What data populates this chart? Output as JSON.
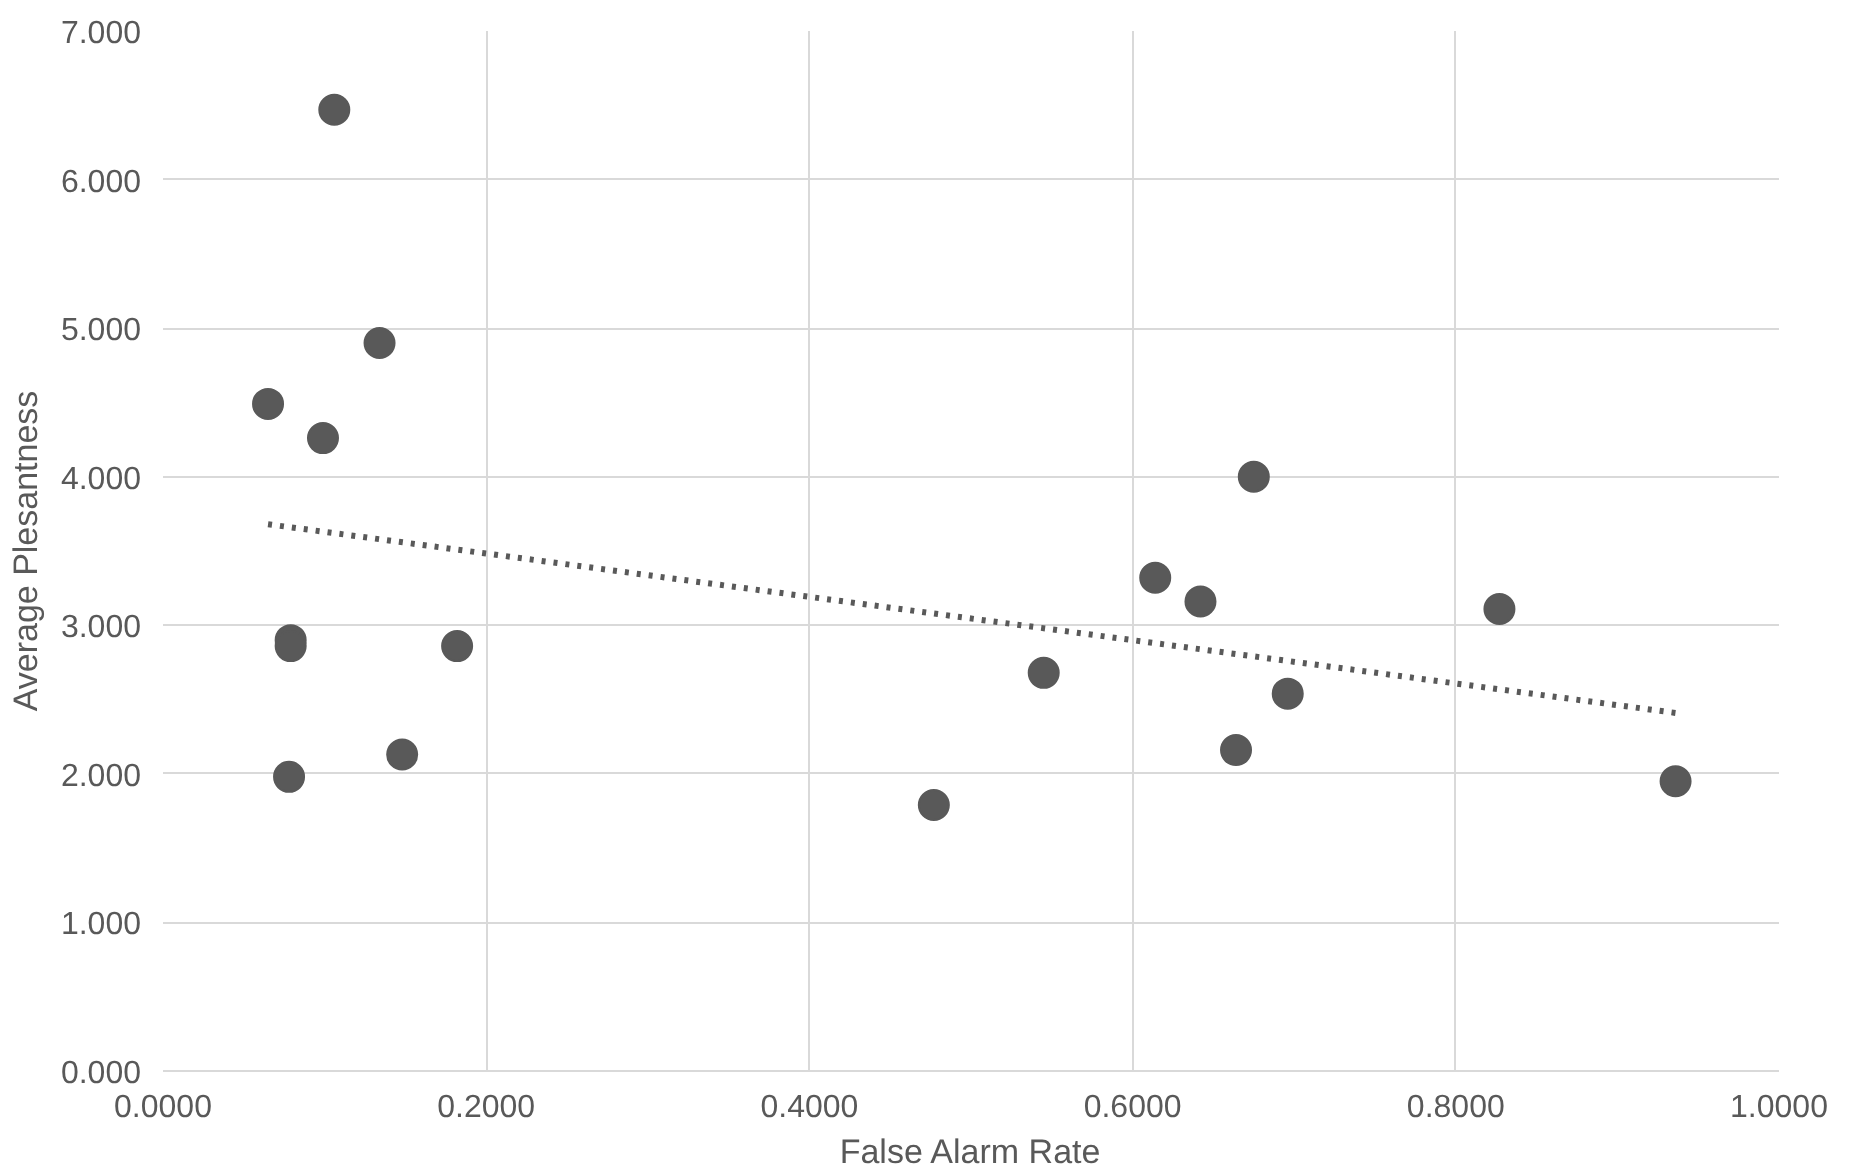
{
  "chart_data": {
    "type": "scatter",
    "xlabel": "False Alarm Rate",
    "ylabel": "Average Plesantness",
    "xlim": [
      0,
      1
    ],
    "ylim": [
      0,
      7
    ],
    "xticks": [
      {
        "value": 0,
        "label": "0.0000"
      },
      {
        "value": 0.2,
        "label": "0.2000"
      },
      {
        "value": 0.4,
        "label": "0.4000"
      },
      {
        "value": 0.6,
        "label": "0.6000"
      },
      {
        "value": 0.8,
        "label": "0.8000"
      },
      {
        "value": 1,
        "label": "1.0000"
      }
    ],
    "yticks": [
      {
        "value": 0,
        "label": "0.000"
      },
      {
        "value": 1,
        "label": "1.000"
      },
      {
        "value": 2,
        "label": "2.000"
      },
      {
        "value": 3,
        "label": "3.000"
      },
      {
        "value": 4,
        "label": "4.000"
      },
      {
        "value": 5,
        "label": "5.000"
      },
      {
        "value": 6,
        "label": "6.000"
      },
      {
        "value": 7,
        "label": "7.000"
      }
    ],
    "grid": true,
    "series": [
      {
        "color": "#595959",
        "marker": "circle",
        "x": [
          0.065,
          0.106,
          0.134,
          0.099,
          0.079,
          0.079,
          0.078,
          0.148,
          0.182,
          0.477,
          0.545,
          0.614,
          0.642,
          0.664,
          0.675,
          0.696,
          0.827,
          0.936
        ],
        "values": [
          4.49,
          6.47,
          4.9,
          4.26,
          2.9,
          2.86,
          1.98,
          2.13,
          2.86,
          1.79,
          2.68,
          3.32,
          3.16,
          2.16,
          4.0,
          2.54,
          3.11,
          1.95
        ]
      },
      {
        "type": "line",
        "color": "#595959",
        "line_style": "dotted",
        "marker": "none",
        "x": [
          0.065,
          0.936
        ],
        "values": [
          3.68,
          2.41
        ]
      }
    ]
  }
}
